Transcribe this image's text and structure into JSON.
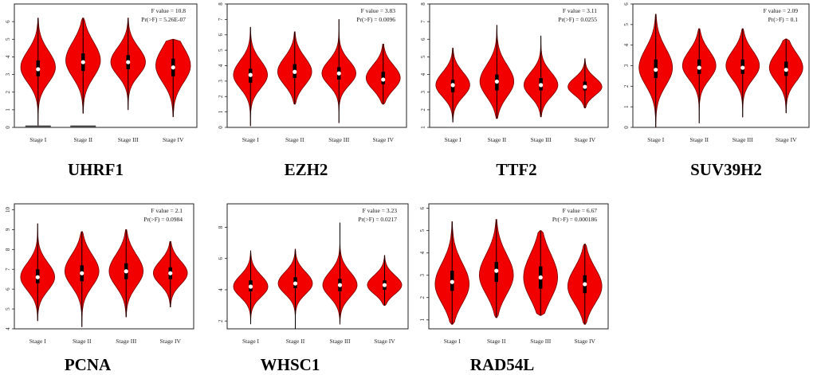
{
  "chart_data": [
    {
      "type": "violin",
      "title": "UHRF1",
      "categories": [
        "Stage I",
        "Stage II",
        "Stage III",
        "Stage IV"
      ],
      "yticks": [
        "0",
        "1",
        "2",
        "3",
        "4",
        "5",
        "6"
      ],
      "ylim": [
        0,
        7
      ],
      "stats": {
        "f": "F value = 10.8",
        "p": "Pr(>F) = 5.26E-07"
      },
      "violins": [
        {
          "min": 0.1,
          "max": 6.2,
          "q1": 2.9,
          "q3": 3.8,
          "median": 3.3,
          "mode": 3.4
        },
        {
          "min": 0.8,
          "max": 6.2,
          "q1": 3.2,
          "q3": 4.2,
          "median": 3.7,
          "mode": 3.8
        },
        {
          "min": 1.0,
          "max": 6.2,
          "q1": 3.3,
          "q3": 4.1,
          "median": 3.7,
          "mode": 3.7
        },
        {
          "min": 0.6,
          "max": 5.0,
          "q1": 2.9,
          "q3": 3.9,
          "median": 3.4,
          "mode": 3.5
        }
      ],
      "baseline_marks": [
        0,
        1
      ]
    },
    {
      "type": "violin",
      "title": "EZH2",
      "categories": [
        "Stage I",
        "Stage II",
        "Stage III",
        "Stage IV"
      ],
      "yticks": [
        "0",
        "1",
        "2",
        "3",
        "4",
        "5",
        "6",
        "7",
        "8"
      ],
      "ylim": [
        0,
        8
      ],
      "stats": {
        "f": "F value = 3.83",
        "p": "Pr(>F) = 0.0096"
      },
      "violins": [
        {
          "min": 0.1,
          "max": 6.5,
          "q1": 2.9,
          "q3": 3.8,
          "median": 3.4,
          "mode": 3.4
        },
        {
          "min": 1.5,
          "max": 6.2,
          "q1": 3.2,
          "q3": 4.1,
          "median": 3.6,
          "mode": 3.6
        },
        {
          "min": 0.3,
          "max": 7.0,
          "q1": 3.1,
          "q3": 3.9,
          "median": 3.5,
          "mode": 3.5
        },
        {
          "min": 1.5,
          "max": 5.4,
          "q1": 2.8,
          "q3": 3.6,
          "median": 3.1,
          "mode": 3.2
        }
      ]
    },
    {
      "type": "violin",
      "title": "TTF2",
      "categories": [
        "Stage I",
        "Stage II",
        "Stage III",
        "Stage IV"
      ],
      "yticks": [
        "1",
        "2",
        "3",
        "4",
        "5",
        "6",
        "7",
        "8"
      ],
      "ylim": [
        1,
        8
      ],
      "stats": {
        "f": "F value = 3.11",
        "p": "Pr(>F) = 0.0255"
      },
      "violins": [
        {
          "min": 1.3,
          "max": 5.5,
          "q1": 3.0,
          "q3": 3.7,
          "median": 3.4,
          "mode": 3.4
        },
        {
          "min": 1.5,
          "max": 6.8,
          "q1": 3.1,
          "q3": 4.0,
          "median": 3.6,
          "mode": 3.6
        },
        {
          "min": 1.6,
          "max": 6.2,
          "q1": 3.1,
          "q3": 3.8,
          "median": 3.4,
          "mode": 3.4
        },
        {
          "min": 2.1,
          "max": 4.9,
          "q1": 3.1,
          "q3": 3.6,
          "median": 3.3,
          "mode": 3.3
        }
      ]
    },
    {
      "type": "violin",
      "title": "SUV39H2",
      "categories": [
        "Stage I",
        "Stage II",
        "Stage III",
        "Stage IV"
      ],
      "yticks": [
        "0",
        "1",
        "2",
        "3",
        "4",
        "5",
        "6"
      ],
      "ylim": [
        0,
        6
      ],
      "stats": {
        "f": "F value = 2.09",
        "p": "Pr(>F) = 0.1"
      },
      "violins": [
        {
          "min": 0.0,
          "max": 5.5,
          "q1": 2.4,
          "q3": 3.3,
          "median": 2.8,
          "mode": 2.9
        },
        {
          "min": 0.2,
          "max": 4.8,
          "q1": 2.6,
          "q3": 3.3,
          "median": 2.9,
          "mode": 3.0
        },
        {
          "min": 0.5,
          "max": 4.8,
          "q1": 2.6,
          "q3": 3.3,
          "median": 2.9,
          "mode": 3.0
        },
        {
          "min": 0.7,
          "max": 4.3,
          "q1": 2.5,
          "q3": 3.2,
          "median": 2.8,
          "mode": 2.9
        }
      ]
    },
    {
      "type": "violin",
      "title": "PCNA",
      "categories": [
        "Stage I",
        "Stage II",
        "Stage III",
        "Stage IV"
      ],
      "yticks": [
        "4",
        "5",
        "6",
        "7",
        "8",
        "9",
        "10"
      ],
      "ylim": [
        4,
        10.3
      ],
      "stats": {
        "f": "F value = 2.1",
        "p": "Pr(>F) = 0.0984"
      },
      "violins": [
        {
          "min": 4.4,
          "max": 9.3,
          "q1": 6.3,
          "q3": 7.0,
          "median": 6.6,
          "mode": 6.6
        },
        {
          "min": 4.1,
          "max": 8.9,
          "q1": 6.4,
          "q3": 7.2,
          "median": 6.8,
          "mode": 6.9
        },
        {
          "min": 4.6,
          "max": 9.0,
          "q1": 6.5,
          "q3": 7.3,
          "median": 6.9,
          "mode": 6.9
        },
        {
          "min": 5.1,
          "max": 8.4,
          "q1": 6.5,
          "q3": 7.1,
          "median": 6.8,
          "mode": 6.8
        }
      ]
    },
    {
      "type": "violin",
      "title": "WHSC1",
      "categories": [
        "Stage I",
        "Stage II",
        "Stage III",
        "Stage IV"
      ],
      "yticks": [
        "2",
        "4",
        "6",
        "8"
      ],
      "ylim": [
        1.5,
        9.5
      ],
      "stats": {
        "f": "F value = 3.23",
        "p": "Pr(>F) = 0.0217"
      },
      "violins": [
        {
          "min": 1.8,
          "max": 6.5,
          "q1": 3.9,
          "q3": 4.6,
          "median": 4.2,
          "mode": 4.2
        },
        {
          "min": 1.5,
          "max": 6.6,
          "q1": 4.1,
          "q3": 4.8,
          "median": 4.4,
          "mode": 4.4
        },
        {
          "min": 1.8,
          "max": 8.3,
          "q1": 3.9,
          "q3": 4.7,
          "median": 4.3,
          "mode": 4.3
        },
        {
          "min": 3.0,
          "max": 6.2,
          "q1": 4.0,
          "q3": 4.6,
          "median": 4.3,
          "mode": 4.3
        }
      ]
    },
    {
      "type": "violin",
      "title": "RAD54L",
      "categories": [
        "Stage I",
        "Stage II",
        "Stage III",
        "Stage IV"
      ],
      "yticks": [
        "1",
        "2",
        "3",
        "4",
        "5",
        "6"
      ],
      "ylim": [
        0.6,
        6.2
      ],
      "stats": {
        "f": "F value = 6.67",
        "p": "Pr(>F) = 0.000186"
      },
      "violins": [
        {
          "min": 0.8,
          "max": 5.4,
          "q1": 2.3,
          "q3": 3.2,
          "median": 2.7,
          "mode": 2.6
        },
        {
          "min": 1.1,
          "max": 5.5,
          "q1": 2.7,
          "q3": 3.6,
          "median": 3.2,
          "mode": 3.0
        },
        {
          "min": 1.2,
          "max": 5.0,
          "q1": 2.4,
          "q3": 3.4,
          "median": 2.9,
          "mode": 2.9
        },
        {
          "min": 0.8,
          "max": 4.4,
          "q1": 2.2,
          "q3": 3.0,
          "median": 2.6,
          "mode": 2.5
        }
      ]
    }
  ],
  "colors": {
    "violin_fill": "#f20000",
    "violin_stroke": "#7a0000",
    "box": "#000000",
    "median": "#ffffff"
  }
}
